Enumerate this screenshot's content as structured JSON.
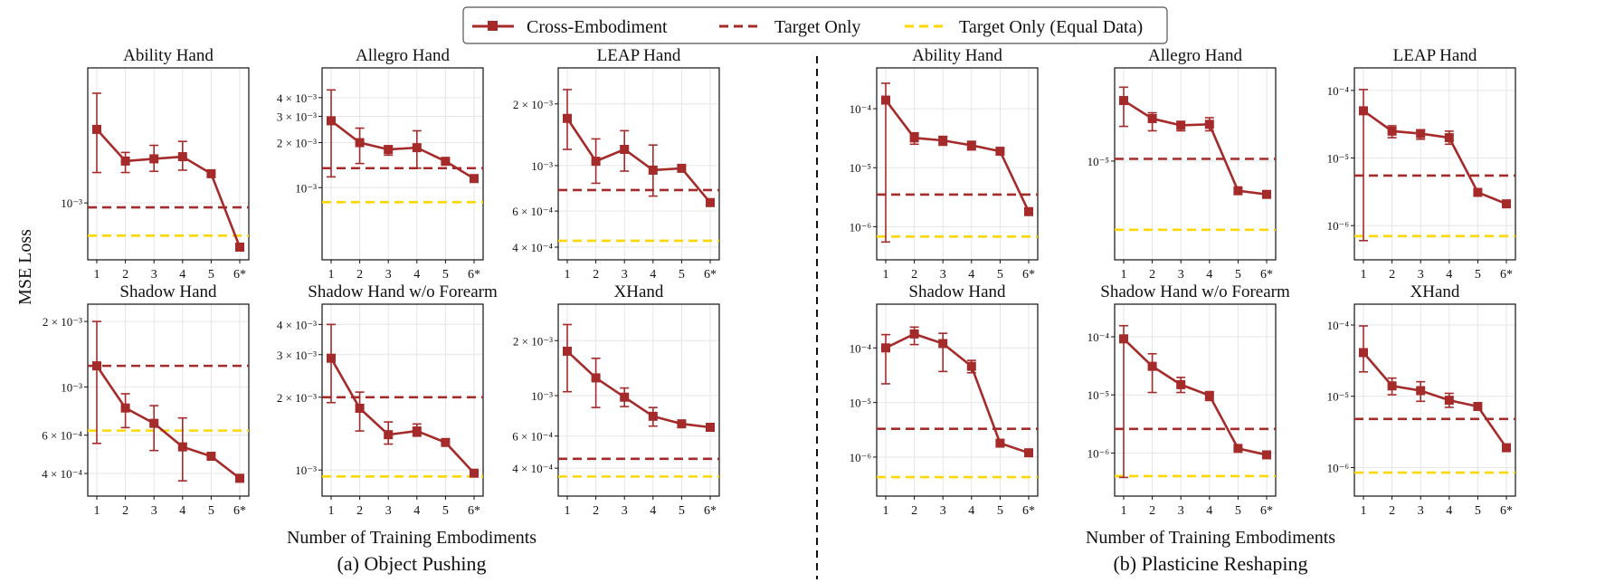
{
  "legend": {
    "position": "top-center",
    "entries": [
      {
        "label": "Cross-Embodiment",
        "color": "#a52a2a",
        "style": "line-marker"
      },
      {
        "label": "Target Only",
        "color": "#a52a2a",
        "style": "dashed"
      },
      {
        "label": "Target Only (Equal Data)",
        "color": "#ffd700",
        "style": "dashed"
      }
    ]
  },
  "shared_ylabel": "MSE Loss",
  "groups": [
    {
      "xlabel": "Number of Training Embodiments",
      "caption": "(a) Object Pushing"
    },
    {
      "xlabel": "Number of Training Embodiments",
      "caption": "(b) Plasticine Reshaping"
    }
  ],
  "colors": {
    "cross": "#a52a2a",
    "target": "#a52a2a",
    "equal": "#ffd700"
  },
  "chart_data": [
    {
      "type": "line",
      "group": "(a) Object Pushing",
      "title": "Ability Hand",
      "categories": [
        "1",
        "2",
        "3",
        "4",
        "5",
        "6*"
      ],
      "yscale": "log",
      "ylim": [
        0.00074,
        0.0023
      ],
      "series": [
        {
          "name": "Cross-Embodiment",
          "values": [
            0.00165,
            0.00133,
            0.00135,
            0.00137,
            0.00122,
            0.00074
          ],
          "err_low": [
            0.00123,
            0.00123,
            0.00124,
            0.00125,
            null,
            null
          ],
          "err_high": [
            0.00211,
            0.00141,
            0.00148,
            0.00152,
            null,
            null
          ]
        }
      ],
      "target_only": 0.00097,
      "target_only_equal": 0.0008,
      "yticks": [
        {
          "value": 0.001,
          "label": "10⁻³"
        }
      ]
    },
    {
      "type": "line",
      "group": "(a) Object Pushing",
      "title": "Allegro Hand",
      "categories": [
        "1",
        "2",
        "3",
        "4",
        "5",
        "6*"
      ],
      "yscale": "log",
      "ylim": [
        0.0004,
        0.0052
      ],
      "series": [
        {
          "name": "Cross-Embodiment",
          "values": [
            0.0028,
            0.002,
            0.0018,
            0.00185,
            0.0015,
            0.00115
          ],
          "err_low": [
            0.00118,
            0.00145,
            0.00165,
            0.00135,
            null,
            null
          ],
          "err_high": [
            0.0045,
            0.0025,
            0.0019,
            0.0024,
            null,
            null
          ]
        }
      ],
      "target_only": 0.00135,
      "target_only_equal": 0.0008,
      "yticks": [
        {
          "value": 0.001,
          "label": "10⁻³"
        },
        {
          "value": 0.002,
          "label": "2 × 10⁻³"
        },
        {
          "value": 0.003,
          "label": "3 × 10⁻³"
        },
        {
          "value": 0.004,
          "label": "4 × 10⁻³"
        }
      ]
    },
    {
      "type": "line",
      "group": "(a) Object Pushing",
      "title": "LEAP Hand",
      "categories": [
        "1",
        "2",
        "3",
        "4",
        "5",
        "6*"
      ],
      "yscale": "log",
      "ylim": [
        0.0004,
        0.0026
      ],
      "series": [
        {
          "name": "Cross-Embodiment",
          "values": [
            0.0017,
            0.00105,
            0.0012,
            0.00095,
            0.00097,
            0.00066
          ],
          "err_low": [
            0.0012,
            0.00082,
            0.00094,
            0.00071,
            null,
            null
          ],
          "err_high": [
            0.00235,
            0.00135,
            0.00148,
            0.00126,
            null,
            null
          ]
        }
      ],
      "target_only": 0.00076,
      "target_only_equal": 0.00043,
      "yticks": [
        {
          "value": 0.0004,
          "label": "4 × 10⁻⁴"
        },
        {
          "value": 0.0006,
          "label": "6 × 10⁻⁴"
        },
        {
          "value": 0.001,
          "label": "10⁻³"
        },
        {
          "value": 0.002,
          "label": "2 × 10⁻³"
        }
      ]
    },
    {
      "type": "line",
      "group": "(a) Object Pushing",
      "title": "Shadow Hand",
      "categories": [
        "1",
        "2",
        "3",
        "4",
        "5",
        "6*"
      ],
      "yscale": "log",
      "ylim": [
        0.00036,
        0.0021
      ],
      "series": [
        {
          "name": "Cross-Embodiment",
          "values": [
            0.00125,
            0.0008,
            0.00068,
            0.00053,
            0.00048,
            0.00038
          ],
          "err_low": [
            0.00055,
            0.00065,
            0.00051,
            0.00037,
            null,
            null
          ],
          "err_high": [
            0.002,
            0.00093,
            0.00082,
            0.00072,
            null,
            null
          ]
        }
      ],
      "target_only": 0.00125,
      "target_only_equal": 0.00063,
      "yticks": [
        {
          "value": 0.0004,
          "label": "4 × 10⁻⁴"
        },
        {
          "value": 0.0006,
          "label": "6 × 10⁻⁴"
        },
        {
          "value": 0.001,
          "label": "10⁻³"
        },
        {
          "value": 0.002,
          "label": "2 × 10⁻³"
        }
      ]
    },
    {
      "type": "line",
      "group": "(a) Object Pushing",
      "title": "Shadow Hand w/o Forearm",
      "categories": [
        "1",
        "2",
        "3",
        "4",
        "5",
        "6*"
      ],
      "yscale": "log",
      "ylim": [
        0.00088,
        0.0043
      ],
      "series": [
        {
          "name": "Cross-Embodiment",
          "values": [
            0.0029,
            0.0018,
            0.0014,
            0.00145,
            0.0013,
            0.00097
          ],
          "err_low": [
            0.0019,
            0.00145,
            0.00128,
            0.00138,
            null,
            null
          ],
          "err_high": [
            0.004,
            0.0021,
            0.00158,
            0.00155,
            null,
            null
          ]
        }
      ],
      "target_only": 0.002,
      "target_only_equal": 0.00094,
      "yticks": [
        {
          "value": 0.001,
          "label": "10⁻³"
        },
        {
          "value": 0.002,
          "label": "2 × 10⁻³"
        },
        {
          "value": 0.003,
          "label": "3 × 10⁻³"
        },
        {
          "value": 0.004,
          "label": "4 × 10⁻³"
        }
      ]
    },
    {
      "type": "line",
      "group": "(a) Object Pushing",
      "title": "XHand",
      "categories": [
        "1",
        "2",
        "3",
        "4",
        "5",
        "6*"
      ],
      "yscale": "log",
      "ylim": [
        0.00033,
        0.0027
      ],
      "series": [
        {
          "name": "Cross-Embodiment",
          "values": [
            0.00175,
            0.00125,
            0.00098,
            0.00077,
            0.0007,
            0.00067
          ],
          "err_low": [
            0.00105,
            0.00086,
            0.00087,
            0.00068,
            null,
            null
          ],
          "err_high": [
            0.00245,
            0.0016,
            0.0011,
            0.00086,
            null,
            null
          ]
        }
      ],
      "target_only": 0.00045,
      "target_only_equal": 0.00036,
      "yticks": [
        {
          "value": 0.0004,
          "label": "4 × 10⁻⁴"
        },
        {
          "value": 0.0006,
          "label": "6 × 10⁻⁴"
        },
        {
          "value": 0.001,
          "label": "10⁻³"
        },
        {
          "value": 0.002,
          "label": "2 × 10⁻³"
        }
      ]
    },
    {
      "type": "line",
      "group": "(b) Plasticine Reshaping",
      "title": "Ability Hand",
      "categories": [
        "1",
        "2",
        "3",
        "4",
        "5",
        "6*"
      ],
      "yscale": "log",
      "ylim": [
        4.5e-07,
        0.0003
      ],
      "series": [
        {
          "name": "Cross-Embodiment",
          "values": [
            0.00014,
            3.2e-05,
            2.9e-05,
            2.4e-05,
            1.9e-05,
            1.8e-06
          ],
          "err_low": [
            5.5e-07,
            2.5e-05,
            2.4e-05,
            2e-05,
            null,
            null
          ],
          "err_high": [
            0.00027,
            3.9e-05,
            3.4e-05,
            2.8e-05,
            null,
            null
          ]
        }
      ],
      "target_only": 3.5e-06,
      "target_only_equal": 6.8e-07,
      "yticks": [
        {
          "value": 1e-06,
          "label": "10⁻⁶"
        },
        {
          "value": 1e-05,
          "label": "10⁻⁵"
        },
        {
          "value": 0.0001,
          "label": "10⁻⁴"
        }
      ]
    },
    {
      "type": "line",
      "group": "(b) Plasticine Reshaping",
      "title": "Allegro Hand",
      "categories": [
        "1",
        "2",
        "3",
        "4",
        "5",
        "6*"
      ],
      "yscale": "log",
      "ylim": [
        1.5e-06,
        5.9e-05
      ],
      "series": [
        {
          "name": "Cross-Embodiment",
          "values": [
            3.8e-05,
            2.55e-05,
            2.2e-05,
            2.25e-05,
            5.2e-06,
            4.8e-06
          ],
          "err_low": [
            2.15e-05,
            1.95e-05,
            1.95e-05,
            1.95e-05,
            null,
            null
          ],
          "err_high": [
            5.1e-05,
            2.9e-05,
            2.4e-05,
            2.6e-05,
            null,
            null
          ]
        }
      ],
      "target_only": 1.05e-05,
      "target_only_equal": 2.2e-06,
      "yticks": [
        {
          "value": 1e-05,
          "label": "10⁻⁵"
        }
      ]
    },
    {
      "type": "line",
      "group": "(b) Plasticine Reshaping",
      "title": "LEAP Hand",
      "categories": [
        "1",
        "2",
        "3",
        "4",
        "5",
        "6*"
      ],
      "yscale": "log",
      "ylim": [
        4.8e-07,
        0.00014
      ],
      "series": [
        {
          "name": "Cross-Embodiment",
          "values": [
            5e-05,
            2.5e-05,
            2.3e-05,
            2e-05,
            3.1e-06,
            2.1e-06
          ],
          "err_low": [
            6e-07,
            2e-05,
            1.9e-05,
            1.6e-05,
            null,
            null
          ],
          "err_high": [
            0.000103,
            3e-05,
            2.6e-05,
            2.5e-05,
            null,
            null
          ]
        }
      ],
      "target_only": 5.5e-06,
      "target_only_equal": 7e-07,
      "yticks": [
        {
          "value": 1e-06,
          "label": "10⁻⁶"
        },
        {
          "value": 1e-05,
          "label": "10⁻⁵"
        },
        {
          "value": 0.0001,
          "label": "10⁻⁴"
        }
      ]
    },
    {
      "type": "line",
      "group": "(b) Plasticine Reshaping",
      "title": "Shadow Hand",
      "categories": [
        "1",
        "2",
        "3",
        "4",
        "5",
        "6*"
      ],
      "yscale": "log",
      "ylim": [
        3.3e-07,
        0.00037
      ],
      "series": [
        {
          "name": "Cross-Embodiment",
          "values": [
            0.0001,
            0.00018,
            0.00012,
            4.6e-05,
            1.8e-06,
            1.2e-06
          ],
          "err_low": [
            2.2e-05,
            0.000115,
            3.7e-05,
            3.5e-05,
            null,
            null
          ],
          "err_high": [
            0.000175,
            0.00024,
            0.000185,
            5.9e-05,
            null,
            null
          ]
        }
      ],
      "target_only": 3.3e-06,
      "target_only_equal": 4.3e-07,
      "yticks": [
        {
          "value": 1e-06,
          "label": "10⁻⁶"
        },
        {
          "value": 1e-05,
          "label": "10⁻⁵"
        },
        {
          "value": 0.0001,
          "label": "10⁻⁴"
        }
      ]
    },
    {
      "type": "line",
      "group": "(b) Plasticine Reshaping",
      "title": "Shadow Hand w/o Forearm",
      "categories": [
        "1",
        "2",
        "3",
        "4",
        "5",
        "6*"
      ],
      "yscale": "log",
      "ylim": [
        3e-07,
        0.00022
      ],
      "series": [
        {
          "name": "Cross-Embodiment",
          "values": [
            9.2e-05,
            3.1e-05,
            1.5e-05,
            9.8e-06,
            1.2e-06,
            9.3e-07
          ],
          "err_low": [
            3.8e-07,
            1.1e-05,
            1.1e-05,
            8e-06,
            null,
            null
          ],
          "err_high": [
            0.000155,
            5.1e-05,
            2e-05,
            1.1e-05,
            null,
            null
          ]
        }
      ],
      "target_only": 2.6e-06,
      "target_only_equal": 4e-07,
      "yticks": [
        {
          "value": 1e-06,
          "label": "10⁻⁶"
        },
        {
          "value": 1e-05,
          "label": "10⁻⁵"
        },
        {
          "value": 0.0001,
          "label": "10⁻⁴"
        }
      ]
    },
    {
      "type": "line",
      "group": "(b) Plasticine Reshaping",
      "title": "XHand",
      "categories": [
        "1",
        "2",
        "3",
        "4",
        "5",
        "6*"
      ],
      "yscale": "log",
      "ylim": [
        6e-07,
        0.00013
      ],
      "series": [
        {
          "name": "Cross-Embodiment",
          "values": [
            4.1e-05,
            1.4e-05,
            1.2e-05,
            8.8e-06,
            7.2e-06,
            1.9e-06
          ],
          "err_low": [
            2.2e-05,
            1.05e-05,
            8.5e-06,
            7e-06,
            null,
            null
          ],
          "err_high": [
            9.7e-05,
            1.8e-05,
            1.6e-05,
            1.1e-05,
            null,
            null
          ]
        }
      ],
      "target_only": 4.8e-06,
      "target_only_equal": 8.5e-07,
      "yticks": [
        {
          "value": 1e-06,
          "label": "10⁻⁶"
        },
        {
          "value": 1e-05,
          "label": "10⁻⁵"
        },
        {
          "value": 0.0001,
          "label": "10⁻⁴"
        }
      ]
    }
  ]
}
